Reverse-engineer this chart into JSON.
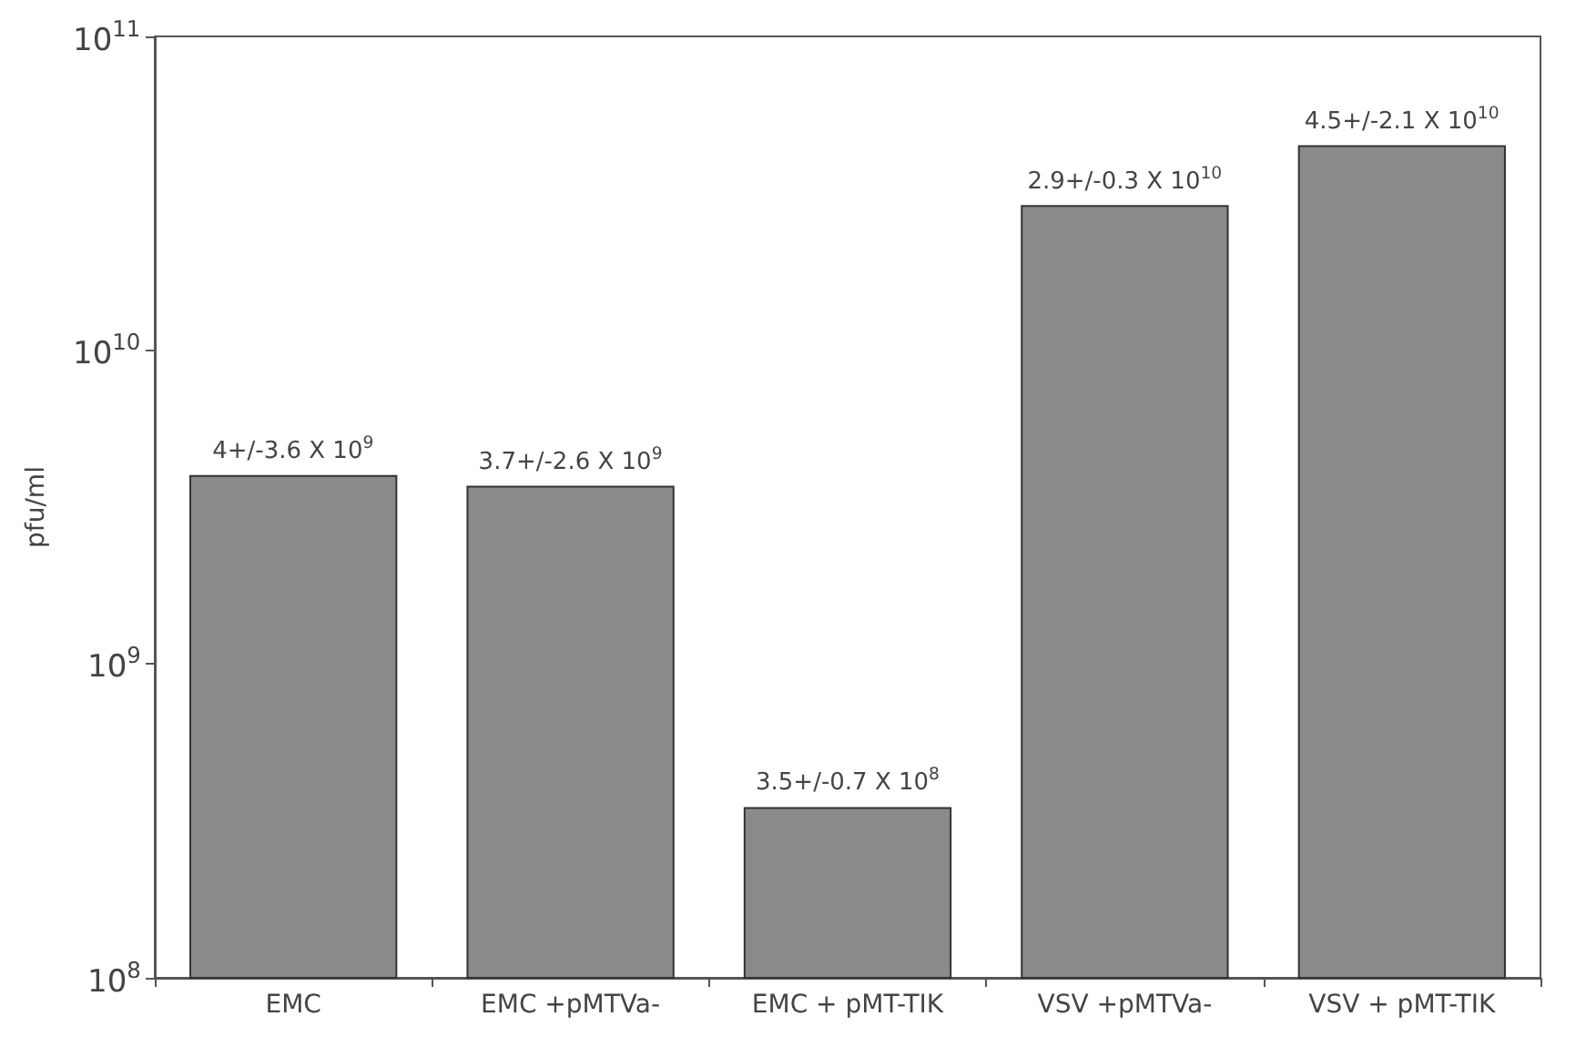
{
  "chart_data": {
    "type": "bar",
    "ylabel": "pfu/ml",
    "categories": [
      "EMC",
      "EMC +pMTVa-",
      "EMC + pMT-TIK",
      "VSV +pMTVa-",
      "VSV + pMT-TIK"
    ],
    "values": [
      4000000000.0,
      3700000000.0,
      350000000.0,
      29000000000.0,
      45000000000.0
    ],
    "annotations": [
      {
        "text": "4+/-3.6 X 10$^{9}$",
        "x": "EMC",
        "y": 4000000000.0
      },
      {
        "text": "3.7+/-2.6 X 10$^{9}$",
        "x": "EMC +pMTVa-",
        "y": 3700000000.0
      },
      {
        "text": "3.5+/-0.7 X 10$^{8}$",
        "x": "EMC + pMT-TIK",
        "y": 350000000.0
      },
      {
        "text": "2.9+/-0.3 X 10$^{10}$",
        "x": "VSV +pMTVa-",
        "y": 29000000000.0
      },
      {
        "text": "4.5+/-2.1 X 10$^{10}$",
        "x": "VSV + pMT-TIK",
        "y": 45000000000.0
      }
    ],
    "color": "#8a8a8a",
    "log": true,
    "grid": false,
    "ylim": [
      100000000.0,
      100000000000.0
    ],
    "yticks": [
      {
        "value": 100000000.0,
        "label": "10$^{8}$"
      },
      {
        "value": 1000000000.0,
        "label": "10$^{9}$"
      },
      {
        "value": 10000000000.0,
        "label": "10$^{10}$"
      },
      {
        "value": 100000000000.0,
        "label": "10$^{11}$"
      }
    ]
  }
}
